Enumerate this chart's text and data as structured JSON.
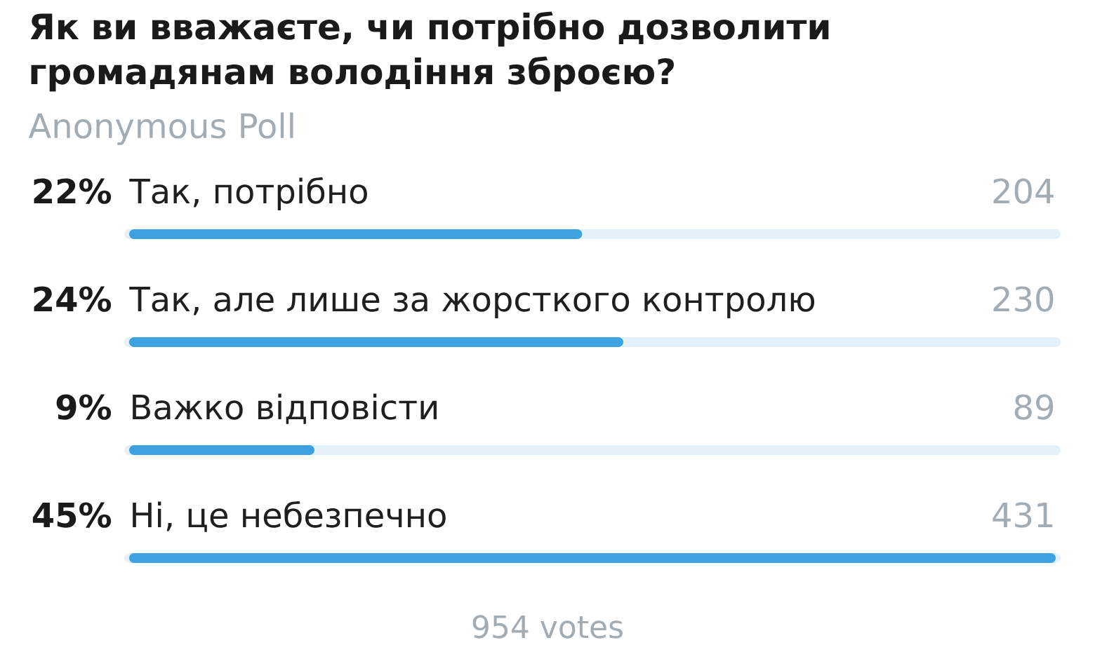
{
  "chart_data": {
    "type": "bar",
    "orientation": "horizontal",
    "title": "Як ви вважаєте, чи потрібно дозволити громадянам володіння зброєю?",
    "subtitle": "Anonymous Poll",
    "categories": [
      "Так, потрібно",
      "Так, але лише за жорсткого контролю",
      "Важко відповісти",
      "Ні, це небезпечно"
    ],
    "values": [
      22,
      24,
      9,
      45
    ],
    "color": "#3fa2e0",
    "value_labels": [
      "22%",
      "24%",
      "9%",
      "45%"
    ],
    "tick_labels": "y",
    "grid": "y",
    "annotations": [
      "204",
      "230",
      "89",
      "431",
      "954 votes"
    ]
  }
}
